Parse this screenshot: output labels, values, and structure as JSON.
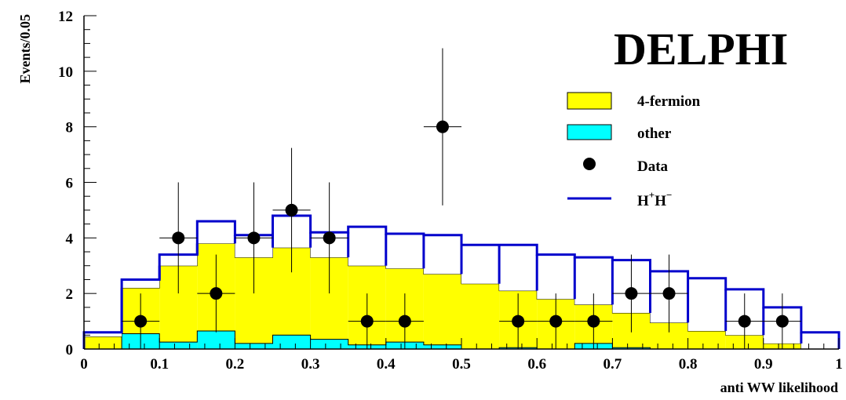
{
  "chart_data": {
    "type": "histogram",
    "brand": "DELPHI",
    "xlabel": "anti WW likelihood",
    "ylabel": "Events/0.05",
    "xlim": [
      0,
      1
    ],
    "ylim": [
      0,
      12
    ],
    "x_ticks": [
      "0",
      "0.1",
      "0.2",
      "0.3",
      "0.4",
      "0.5",
      "0.6",
      "0.7",
      "0.8",
      "0.9",
      "1"
    ],
    "y_ticks": [
      "0",
      "2",
      "4",
      "6",
      "8",
      "10",
      "12"
    ],
    "bin_edges": [
      0,
      0.05,
      0.1,
      0.15,
      0.2,
      0.25,
      0.3,
      0.35,
      0.4,
      0.45,
      0.5,
      0.55,
      0.6,
      0.65,
      0.7,
      0.75,
      0.8,
      0.85,
      0.9,
      0.95,
      1.0
    ],
    "stack_4fermion_top": [
      0.45,
      2.2,
      3.0,
      3.8,
      3.3,
      3.65,
      3.3,
      3.0,
      2.9,
      2.7,
      2.35,
      2.1,
      1.8,
      1.6,
      1.3,
      0.95,
      0.65,
      0.5,
      0.2,
      0.0
    ],
    "other": [
      0.0,
      0.55,
      0.25,
      0.65,
      0.2,
      0.5,
      0.35,
      0.15,
      0.25,
      0.15,
      0.0,
      0.05,
      0.0,
      0.2,
      0.05,
      0.0,
      0.0,
      0.0,
      0.0,
      0.0
    ],
    "signal_total": [
      0.6,
      2.5,
      3.4,
      4.6,
      4.1,
      4.8,
      4.2,
      4.4,
      4.15,
      4.1,
      3.75,
      3.75,
      3.4,
      3.3,
      3.2,
      2.8,
      2.55,
      2.15,
      1.5,
      0.6
    ],
    "data_points": [
      {
        "x": 0.075,
        "y": 1,
        "err_up": 1.0,
        "err_down": 1.0
      },
      {
        "x": 0.125,
        "y": 4,
        "err_up": 2.0,
        "err_down": 2.0
      },
      {
        "x": 0.175,
        "y": 2,
        "err_up": 1.4,
        "err_down": 1.4
      },
      {
        "x": 0.225,
        "y": 4,
        "err_up": 2.0,
        "err_down": 2.0
      },
      {
        "x": 0.275,
        "y": 5,
        "err_up": 2.24,
        "err_down": 2.24
      },
      {
        "x": 0.325,
        "y": 4,
        "err_up": 2.0,
        "err_down": 2.0
      },
      {
        "x": 0.375,
        "y": 1,
        "err_up": 1.0,
        "err_down": 1.0
      },
      {
        "x": 0.425,
        "y": 1,
        "err_up": 1.0,
        "err_down": 1.0
      },
      {
        "x": 0.475,
        "y": 8,
        "err_up": 2.83,
        "err_down": 2.83
      },
      {
        "x": 0.575,
        "y": 1,
        "err_up": 1.0,
        "err_down": 1.0
      },
      {
        "x": 0.625,
        "y": 1,
        "err_up": 1.0,
        "err_down": 1.0
      },
      {
        "x": 0.675,
        "y": 1,
        "err_up": 1.0,
        "err_down": 1.0
      },
      {
        "x": 0.725,
        "y": 2,
        "err_up": 1.4,
        "err_down": 1.4
      },
      {
        "x": 0.775,
        "y": 2,
        "err_up": 1.4,
        "err_down": 1.4
      },
      {
        "x": 0.875,
        "y": 1,
        "err_up": 1.0,
        "err_down": 1.0
      },
      {
        "x": 0.925,
        "y": 1,
        "err_up": 1.0,
        "err_down": 1.0
      }
    ],
    "legend": {
      "fermion": "4-fermion",
      "other": "other",
      "data": "Data",
      "signal": "H",
      "signal_sup1": "+",
      "signal_base2": "H",
      "signal_sup2": "−"
    },
    "colors": {
      "fermion": "#ffff00",
      "other": "#00ffff",
      "signal": "#0000cc",
      "data": "#000000"
    }
  }
}
